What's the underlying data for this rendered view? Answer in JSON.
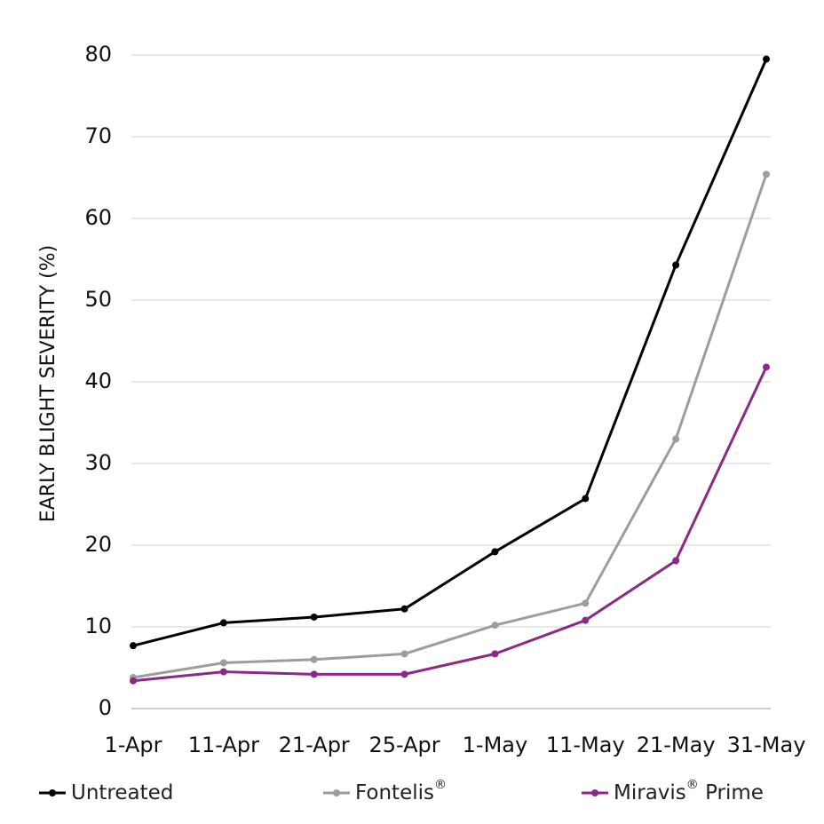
{
  "chart_data": {
    "type": "line",
    "title": "",
    "xlabel": "",
    "ylabel": "EARLY BLIGHT SEVERITY (%)",
    "categories": [
      "1-Apr",
      "11-Apr",
      "21-Apr",
      "25-Apr",
      "1-May",
      "11-May",
      "21-May",
      "31-May"
    ],
    "ylim": [
      0,
      80
    ],
    "yticks": [
      0,
      10,
      20,
      30,
      40,
      50,
      60,
      70,
      80
    ],
    "grid": true,
    "legend_position": "bottom",
    "series": [
      {
        "name": "Untreated",
        "legend_text": "Untreated",
        "legend_sup": "",
        "color": "#000000",
        "values": [
          7.7,
          10.5,
          11.2,
          12.2,
          19.2,
          25.7,
          54.3,
          79.5
        ]
      },
      {
        "name": "Fontelis®",
        "legend_text": "Fontelis",
        "legend_sup": "®",
        "color": "#9d9d9b",
        "values": [
          3.8,
          5.6,
          6.0,
          6.7,
          10.2,
          12.9,
          33.0,
          65.4
        ]
      },
      {
        "name": "Miravis® Prime",
        "legend_text": "Miravis",
        "legend_sup": "®",
        "legend_suffix": " Prime",
        "color": "#8b2a86",
        "values": [
          3.4,
          4.5,
          4.2,
          4.2,
          6.7,
          10.8,
          18.1,
          41.8
        ]
      }
    ]
  }
}
